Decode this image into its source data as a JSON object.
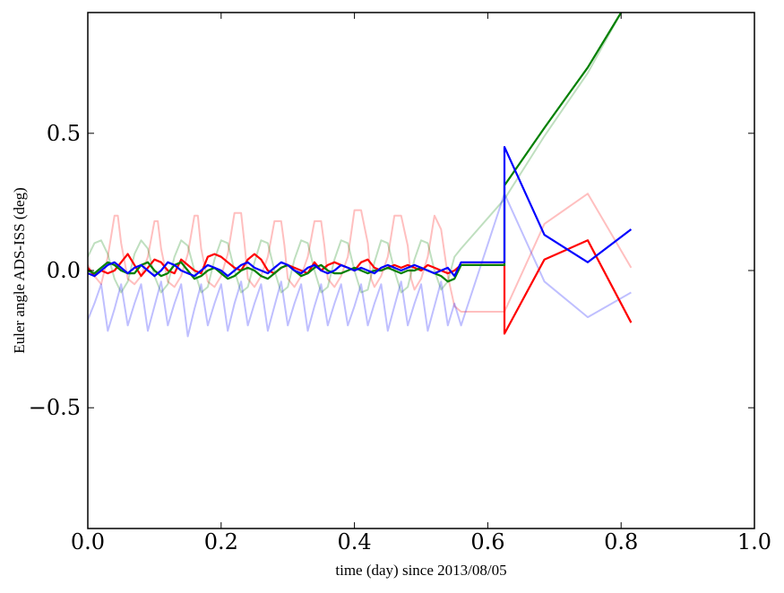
{
  "chart_data": {
    "type": "line",
    "title": "",
    "xlabel": "time (day) since 2013/08/05",
    "ylabel": "Euler angle ADS-ISS (deg)",
    "xlim": [
      0.0,
      1.0
    ],
    "ylim": [
      -0.94,
      0.94
    ],
    "xticks": [
      0.0,
      0.2,
      0.4,
      0.6,
      0.8,
      1.0
    ],
    "xtick_labels": [
      "0.0",
      "0.2",
      "0.4",
      "0.6",
      "0.8",
      "1.0"
    ],
    "yticks": [
      -0.5,
      0.0,
      0.5
    ],
    "ytick_labels": [
      "−0.5",
      "0.0",
      "0.5"
    ],
    "grid": false,
    "legend": "none",
    "series": [
      {
        "color": "#ff0000",
        "opacity": 0.25,
        "x": [
          0.0,
          0.01,
          0.02,
          0.03,
          0.04,
          0.045,
          0.05,
          0.06,
          0.07,
          0.08,
          0.09,
          0.1,
          0.105,
          0.11,
          0.12,
          0.13,
          0.14,
          0.15,
          0.16,
          0.165,
          0.17,
          0.18,
          0.19,
          0.2,
          0.21,
          0.22,
          0.23,
          0.235,
          0.24,
          0.25,
          0.26,
          0.27,
          0.28,
          0.29,
          0.295,
          0.3,
          0.31,
          0.32,
          0.33,
          0.34,
          0.35,
          0.355,
          0.36,
          0.37,
          0.38,
          0.39,
          0.4,
          0.41,
          0.42,
          0.425,
          0.43,
          0.44,
          0.45,
          0.46,
          0.47,
          0.48,
          0.485,
          0.49,
          0.5,
          0.51,
          0.52,
          0.53,
          0.54,
          0.55,
          0.56,
          0.625,
          0.685,
          0.75,
          0.815
        ],
        "y": [
          0.02,
          -0.02,
          -0.05,
          0.05,
          0.2,
          0.2,
          0.1,
          -0.03,
          -0.05,
          -0.02,
          0.05,
          0.18,
          0.18,
          0.08,
          -0.04,
          -0.06,
          -0.02,
          0.06,
          0.2,
          0.2,
          0.08,
          -0.04,
          -0.06,
          -0.02,
          0.06,
          0.21,
          0.21,
          0.1,
          -0.03,
          -0.06,
          -0.02,
          0.05,
          0.18,
          0.18,
          0.09,
          -0.03,
          -0.06,
          -0.02,
          0.05,
          0.18,
          0.18,
          0.09,
          -0.03,
          -0.06,
          -0.02,
          0.05,
          0.22,
          0.22,
          0.1,
          -0.03,
          -0.06,
          -0.02,
          0.05,
          0.2,
          0.2,
          0.09,
          -0.03,
          -0.07,
          -0.03,
          0.05,
          0.2,
          0.15,
          -0.02,
          -0.13,
          -0.15,
          -0.15,
          0.17,
          0.28,
          0.01
        ]
      },
      {
        "color": "#008000",
        "opacity": 0.25,
        "x": [
          0.0,
          0.01,
          0.02,
          0.03,
          0.04,
          0.05,
          0.06,
          0.07,
          0.08,
          0.09,
          0.1,
          0.11,
          0.12,
          0.13,
          0.14,
          0.15,
          0.16,
          0.17,
          0.18,
          0.19,
          0.2,
          0.21,
          0.22,
          0.23,
          0.24,
          0.25,
          0.26,
          0.27,
          0.28,
          0.29,
          0.3,
          0.31,
          0.32,
          0.33,
          0.34,
          0.35,
          0.36,
          0.37,
          0.38,
          0.39,
          0.4,
          0.41,
          0.42,
          0.43,
          0.44,
          0.45,
          0.46,
          0.47,
          0.48,
          0.49,
          0.5,
          0.51,
          0.52,
          0.53,
          0.54,
          0.55,
          0.56,
          0.625,
          0.685,
          0.75,
          0.8
        ],
        "y": [
          0.05,
          0.1,
          0.11,
          0.06,
          -0.03,
          -0.08,
          -0.04,
          0.06,
          0.11,
          0.08,
          -0.02,
          -0.08,
          -0.05,
          0.05,
          0.11,
          0.09,
          0.0,
          -0.08,
          -0.06,
          0.04,
          0.11,
          0.1,
          0.0,
          -0.08,
          -0.06,
          0.03,
          0.11,
          0.1,
          0.0,
          -0.08,
          -0.06,
          0.04,
          0.11,
          0.1,
          0.0,
          -0.08,
          -0.06,
          0.04,
          0.11,
          0.1,
          0.0,
          -0.08,
          -0.07,
          0.03,
          0.11,
          0.1,
          0.0,
          -0.08,
          -0.06,
          0.04,
          0.11,
          0.1,
          0.0,
          -0.07,
          -0.04,
          0.05,
          0.08,
          0.26,
          0.49,
          0.72,
          0.94
        ]
      },
      {
        "color": "#0000ff",
        "opacity": 0.25,
        "x": [
          0.0,
          0.01,
          0.02,
          0.03,
          0.04,
          0.05,
          0.06,
          0.07,
          0.08,
          0.09,
          0.1,
          0.11,
          0.12,
          0.13,
          0.14,
          0.15,
          0.16,
          0.17,
          0.18,
          0.19,
          0.2,
          0.21,
          0.22,
          0.23,
          0.24,
          0.25,
          0.26,
          0.27,
          0.28,
          0.29,
          0.3,
          0.31,
          0.32,
          0.33,
          0.34,
          0.35,
          0.36,
          0.37,
          0.38,
          0.39,
          0.4,
          0.41,
          0.42,
          0.43,
          0.44,
          0.45,
          0.46,
          0.47,
          0.48,
          0.49,
          0.5,
          0.51,
          0.52,
          0.53,
          0.54,
          0.55,
          0.56,
          0.625,
          0.685,
          0.75,
          0.815
        ],
        "y": [
          -0.18,
          -0.12,
          -0.05,
          -0.22,
          -0.14,
          -0.05,
          -0.2,
          -0.12,
          -0.05,
          -0.22,
          -0.13,
          -0.04,
          -0.2,
          -0.12,
          -0.05,
          -0.24,
          -0.14,
          -0.05,
          -0.2,
          -0.12,
          -0.05,
          -0.22,
          -0.12,
          -0.04,
          -0.2,
          -0.12,
          -0.05,
          -0.22,
          -0.13,
          -0.04,
          -0.2,
          -0.12,
          -0.05,
          -0.22,
          -0.13,
          -0.05,
          -0.2,
          -0.12,
          -0.05,
          -0.2,
          -0.13,
          -0.05,
          -0.2,
          -0.12,
          -0.05,
          -0.22,
          -0.13,
          -0.04,
          -0.2,
          -0.12,
          -0.05,
          -0.22,
          -0.13,
          -0.04,
          -0.2,
          -0.12,
          -0.2,
          0.28,
          -0.04,
          -0.17,
          -0.08
        ]
      },
      {
        "color": "#ff0000",
        "opacity": 1,
        "x": [
          0.0,
          0.01,
          0.02,
          0.03,
          0.04,
          0.05,
          0.06,
          0.07,
          0.08,
          0.09,
          0.1,
          0.11,
          0.12,
          0.13,
          0.14,
          0.15,
          0.16,
          0.17,
          0.18,
          0.19,
          0.2,
          0.21,
          0.22,
          0.23,
          0.24,
          0.25,
          0.26,
          0.27,
          0.28,
          0.29,
          0.3,
          0.31,
          0.32,
          0.33,
          0.34,
          0.35,
          0.36,
          0.37,
          0.38,
          0.39,
          0.4,
          0.41,
          0.42,
          0.43,
          0.44,
          0.45,
          0.46,
          0.47,
          0.48,
          0.49,
          0.5,
          0.51,
          0.52,
          0.53,
          0.54,
          0.55,
          0.56,
          0.625,
          0.625,
          0.685,
          0.75,
          0.815
        ],
        "y": [
          0.01,
          -0.02,
          0.0,
          -0.01,
          0.0,
          0.03,
          0.06,
          0.02,
          -0.02,
          0.01,
          0.04,
          0.03,
          0.0,
          -0.01,
          0.04,
          0.02,
          0.0,
          -0.01,
          0.05,
          0.06,
          0.05,
          0.03,
          0.01,
          0.0,
          0.04,
          0.06,
          0.04,
          0.0,
          -0.01,
          0.01,
          0.02,
          0.01,
          0.0,
          -0.01,
          0.03,
          0.0,
          0.02,
          0.03,
          0.02,
          0.01,
          0.0,
          0.03,
          0.04,
          0.01,
          0.0,
          0.01,
          0.02,
          0.01,
          0.02,
          0.01,
          0.0,
          0.02,
          0.01,
          0.0,
          -0.01,
          0.0,
          0.02,
          0.02,
          -0.23,
          0.04,
          0.11,
          -0.19
        ]
      },
      {
        "color": "#008000",
        "opacity": 1,
        "x": [
          0.0,
          0.01,
          0.02,
          0.03,
          0.04,
          0.05,
          0.06,
          0.07,
          0.08,
          0.09,
          0.1,
          0.11,
          0.12,
          0.13,
          0.14,
          0.15,
          0.16,
          0.17,
          0.18,
          0.19,
          0.2,
          0.21,
          0.22,
          0.23,
          0.24,
          0.25,
          0.26,
          0.27,
          0.28,
          0.29,
          0.3,
          0.31,
          0.32,
          0.33,
          0.34,
          0.35,
          0.36,
          0.37,
          0.38,
          0.39,
          0.4,
          0.41,
          0.42,
          0.43,
          0.44,
          0.45,
          0.46,
          0.47,
          0.48,
          0.49,
          0.5,
          0.51,
          0.52,
          0.53,
          0.54,
          0.55,
          0.56,
          0.625,
          0.625,
          0.685,
          0.75,
          0.8
        ],
        "y": [
          0.0,
          -0.01,
          0.01,
          0.03,
          0.02,
          0.0,
          -0.01,
          -0.01,
          0.02,
          0.03,
          0.0,
          -0.02,
          -0.01,
          0.02,
          0.03,
          0.0,
          -0.03,
          -0.02,
          0.0,
          0.01,
          -0.01,
          -0.03,
          -0.02,
          0.0,
          0.01,
          0.0,
          -0.02,
          -0.03,
          -0.01,
          0.01,
          0.02,
          0.0,
          -0.02,
          -0.01,
          0.01,
          0.02,
          0.0,
          -0.01,
          -0.01,
          0.0,
          0.01,
          0.0,
          -0.01,
          0.0,
          0.0,
          0.01,
          0.0,
          -0.01,
          0.0,
          0.0,
          0.01,
          0.0,
          -0.01,
          -0.02,
          -0.04,
          -0.03,
          0.02,
          0.02,
          0.31,
          0.52,
          0.74,
          0.94
        ]
      },
      {
        "color": "#0000ff",
        "opacity": 1,
        "x": [
          0.0,
          0.01,
          0.02,
          0.03,
          0.04,
          0.05,
          0.06,
          0.07,
          0.08,
          0.09,
          0.1,
          0.11,
          0.12,
          0.13,
          0.14,
          0.15,
          0.16,
          0.17,
          0.18,
          0.19,
          0.2,
          0.21,
          0.22,
          0.23,
          0.24,
          0.25,
          0.26,
          0.27,
          0.28,
          0.29,
          0.3,
          0.31,
          0.32,
          0.33,
          0.34,
          0.35,
          0.36,
          0.37,
          0.38,
          0.39,
          0.4,
          0.41,
          0.42,
          0.43,
          0.44,
          0.45,
          0.46,
          0.47,
          0.48,
          0.49,
          0.5,
          0.51,
          0.52,
          0.53,
          0.54,
          0.55,
          0.56,
          0.625,
          0.625,
          0.685,
          0.75,
          0.815
        ],
        "y": [
          -0.01,
          -0.02,
          0.0,
          0.02,
          0.03,
          0.01,
          -0.01,
          0.01,
          0.02,
          0.0,
          -0.02,
          0.0,
          0.03,
          0.02,
          0.0,
          -0.01,
          -0.02,
          0.0,
          0.02,
          0.01,
          0.0,
          -0.02,
          0.0,
          0.02,
          0.03,
          0.01,
          0.0,
          -0.01,
          0.01,
          0.03,
          0.02,
          0.0,
          -0.01,
          0.01,
          0.02,
          0.0,
          -0.01,
          0.0,
          0.02,
          0.01,
          0.0,
          0.01,
          0.0,
          -0.01,
          0.01,
          0.02,
          0.01,
          0.0,
          0.01,
          0.02,
          0.01,
          0.0,
          -0.01,
          0.0,
          0.01,
          -0.02,
          0.03,
          0.03,
          0.45,
          0.13,
          0.03,
          0.15
        ]
      }
    ]
  }
}
